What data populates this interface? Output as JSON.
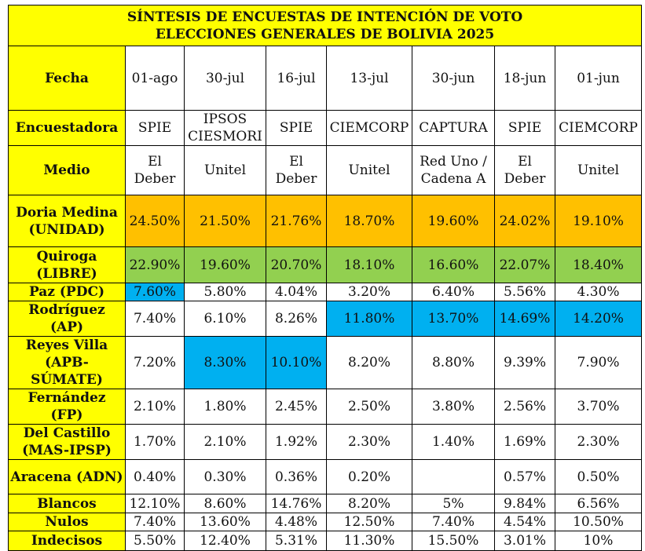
{
  "title": {
    "line1": "SÍNTESIS DE ENCUESTAS DE INTENCIÓN DE VOTO",
    "line2": "ELECCIONES GENERALES DE BOLIVIA 2025"
  },
  "colors": {
    "header_fill": "#ffff00",
    "orange": "#ffc000",
    "green": "#92d050",
    "blue": "#00b0f0"
  },
  "header_rows": [
    {
      "label": "Fecha",
      "cells": [
        "01-ago",
        "30-jul",
        "16-jul",
        "13-jul",
        "30-jun",
        "18-jun",
        "01-jun"
      ]
    },
    {
      "label": "Encuestadora",
      "cells": [
        "SPIE",
        "IPSOS CIESMORI",
        "SPIE",
        "CIEMCORP",
        "CAPTURA",
        "SPIE",
        "CIEMCORP"
      ]
    },
    {
      "label": "Medio",
      "cells": [
        "El Deber",
        "Unitel",
        "El Deber",
        "Unitel",
        "Red Uno / Cadena A",
        "El Deber",
        "Unitel"
      ]
    }
  ],
  "candidates": [
    {
      "label": "Doria Medina (UNIDAD)",
      "values": [
        "24.50%",
        "21.50%",
        "21.76%",
        "18.70%",
        "19.60%",
        "24.02%",
        "19.10%"
      ]
    },
    {
      "label": "Quiroga (LIBRE)",
      "values": [
        "22.90%",
        "19.60%",
        "20.70%",
        "18.10%",
        "16.60%",
        "22.07%",
        "18.40%"
      ]
    },
    {
      "label": "Paz (PDC)",
      "values": [
        "7.60%",
        "5.80%",
        "4.04%",
        "3.20%",
        "6.40%",
        "5.56%",
        "4.30%"
      ]
    },
    {
      "label": "Rodríguez (AP)",
      "values": [
        "7.40%",
        "6.10%",
        "8.26%",
        "11.80%",
        "13.70%",
        "14.69%",
        "14.20%"
      ]
    },
    {
      "label": "Reyes Villa (APB-SÚMATE)",
      "values": [
        "7.20%",
        "8.30%",
        "10.10%",
        "8.20%",
        "8.80%",
        "9.39%",
        "7.90%"
      ]
    },
    {
      "label": "Fernández (FP)",
      "values": [
        "2.10%",
        "1.80%",
        "2.45%",
        "2.50%",
        "3.80%",
        "2.56%",
        "3.70%"
      ]
    },
    {
      "label": "Del Castillo (MAS-IPSP)",
      "values": [
        "1.70%",
        "2.10%",
        "1.92%",
        "2.30%",
        "1.40%",
        "1.69%",
        "2.30%"
      ]
    },
    {
      "label": "Aracena (ADN)",
      "values": [
        "0.40%",
        "0.30%",
        "0.36%",
        "0.20%",
        "",
        "0.57%",
        "0.50%"
      ]
    },
    {
      "label": "Blancos",
      "values": [
        "12.10%",
        "8.60%",
        "14.76%",
        "8.20%",
        "5%",
        "9.84%",
        "6.56%"
      ]
    },
    {
      "label": "Nulos",
      "values": [
        "7.40%",
        "13.60%",
        "4.48%",
        "12.50%",
        "7.40%",
        "4.54%",
        "10.50%"
      ]
    },
    {
      "label": "Indecisos",
      "values": [
        "5.50%",
        "12.40%",
        "5.31%",
        "11.30%",
        "15.50%",
        "3.01%",
        "10%"
      ]
    }
  ]
}
